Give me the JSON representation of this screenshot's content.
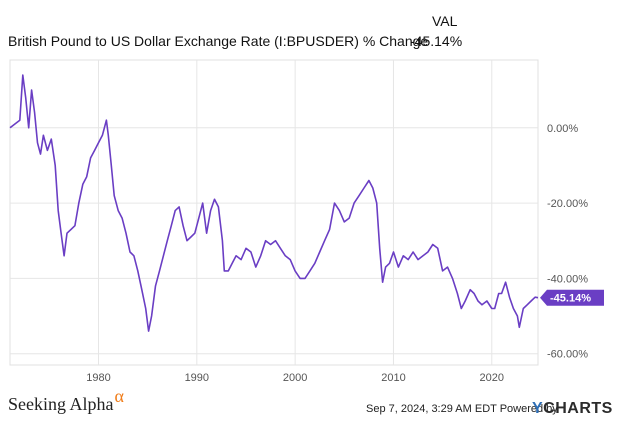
{
  "legend": {
    "series_title": "British Pound to US Dollar Exchange Rate (I:BPUSDER) % Change",
    "value_header": "VAL",
    "value": "-45.14%"
  },
  "colors": {
    "series": "#6a3ec4",
    "grid": "#e6e6e6",
    "axis_text": "#555555",
    "brand_alpha": "#f07c18",
    "ycharts_y": "#2e6fb7"
  },
  "footer": {
    "brand": "Seeking Alpha",
    "brand_symbol": "α",
    "timestamp": "Sep 7, 2024, 3:29 AM EDT Powered by",
    "logo_y": "Y",
    "logo_rest": "CHARTS"
  },
  "chart_data": {
    "type": "line",
    "title": "",
    "xlabel": "",
    "ylabel": "",
    "x_ticks": [
      "1980",
      "1990",
      "2000",
      "2010",
      "2020"
    ],
    "x_tick_values": [
      1980,
      1990,
      2000,
      2010,
      2020
    ],
    "y_ticks": [
      "0.00%",
      "-20.00%",
      "-40.00%",
      "-60.00%"
    ],
    "y_tick_values": [
      0,
      -20,
      -40,
      -60
    ],
    "xlim": [
      1971.0,
      2024.7
    ],
    "ylim": [
      -63,
      18
    ],
    "grid": true,
    "last_value_label": "-45.14%",
    "series": [
      {
        "x": [
          1971.0,
          1971.5,
          1972.0,
          1972.3,
          1972.6,
          1972.9,
          1973.2,
          1973.5,
          1973.8,
          1974.1,
          1974.4,
          1974.8,
          1975.2,
          1975.6,
          1975.9,
          1976.2,
          1976.5,
          1976.8,
          1977.2,
          1977.6,
          1978.0,
          1978.4,
          1978.8,
          1979.2,
          1979.6,
          1980.0,
          1980.4,
          1980.8,
          1981.0,
          1981.3,
          1981.6,
          1982.0,
          1982.4,
          1982.8,
          1983.2,
          1983.6,
          1984.0,
          1984.4,
          1984.8,
          1985.1,
          1985.4,
          1985.8,
          1986.2,
          1986.6,
          1987.0,
          1987.4,
          1987.8,
          1988.2,
          1988.6,
          1989.0,
          1989.4,
          1989.8,
          1990.2,
          1990.6,
          1991.0,
          1991.4,
          1991.8,
          1992.2,
          1992.6,
          1992.8,
          1993.2,
          1993.6,
          1994.0,
          1994.5,
          1995.0,
          1995.5,
          1996.0,
          1996.5,
          1997.0,
          1997.5,
          1998.0,
          1998.5,
          1999.0,
          1999.5,
          2000.0,
          2000.5,
          2001.0,
          2001.5,
          2002.0,
          2002.5,
          2003.0,
          2003.5,
          2004.0,
          2004.5,
          2005.0,
          2005.5,
          2006.0,
          2006.5,
          2007.0,
          2007.5,
          2007.9,
          2008.3,
          2008.6,
          2008.9,
          2009.2,
          2009.6,
          2010.0,
          2010.5,
          2011.0,
          2011.5,
          2012.0,
          2012.5,
          2013.0,
          2013.5,
          2014.0,
          2014.5,
          2015.0,
          2015.5,
          2016.0,
          2016.5,
          2016.9,
          2017.3,
          2017.8,
          2018.2,
          2018.6,
          2019.0,
          2019.5,
          2020.0,
          2020.3,
          2020.7,
          2021.0,
          2021.4,
          2021.8,
          2022.2,
          2022.6,
          2022.8,
          2023.2,
          2023.6,
          2024.0,
          2024.4,
          2024.7
        ],
        "y": [
          0,
          1,
          2,
          14,
          8,
          0,
          10,
          4,
          -4,
          -7,
          -2,
          -6,
          -3,
          -10,
          -22,
          -28,
          -34,
          -28,
          -27,
          -26,
          -20,
          -15,
          -13,
          -8,
          -6,
          -4,
          -2,
          2,
          -2,
          -10,
          -18,
          -22,
          -24,
          -28,
          -33,
          -34,
          -38,
          -43,
          -48,
          -54,
          -50,
          -42,
          -38,
          -34,
          -30,
          -26,
          -22,
          -21,
          -26,
          -30,
          -29,
          -28,
          -24,
          -20,
          -28,
          -22,
          -19,
          -21,
          -30,
          -38,
          -38,
          -36,
          -34,
          -35,
          -32,
          -33,
          -37,
          -34,
          -30,
          -31,
          -30,
          -32,
          -34,
          -35,
          -38,
          -40,
          -40,
          -38,
          -36,
          -33,
          -30,
          -27,
          -20,
          -22,
          -25,
          -24,
          -20,
          -18,
          -16,
          -14,
          -16,
          -20,
          -32,
          -41,
          -37,
          -36,
          -33,
          -37,
          -34,
          -35,
          -33,
          -35,
          -34,
          -33,
          -31,
          -32,
          -38,
          -37,
          -40,
          -44,
          -48,
          -46,
          -43,
          -44,
          -46,
          -47,
          -46,
          -48,
          -48,
          -44,
          -44,
          -41,
          -45,
          -48,
          -50,
          -53,
          -48,
          -47,
          -46,
          -45,
          -45.14
        ]
      }
    ]
  }
}
